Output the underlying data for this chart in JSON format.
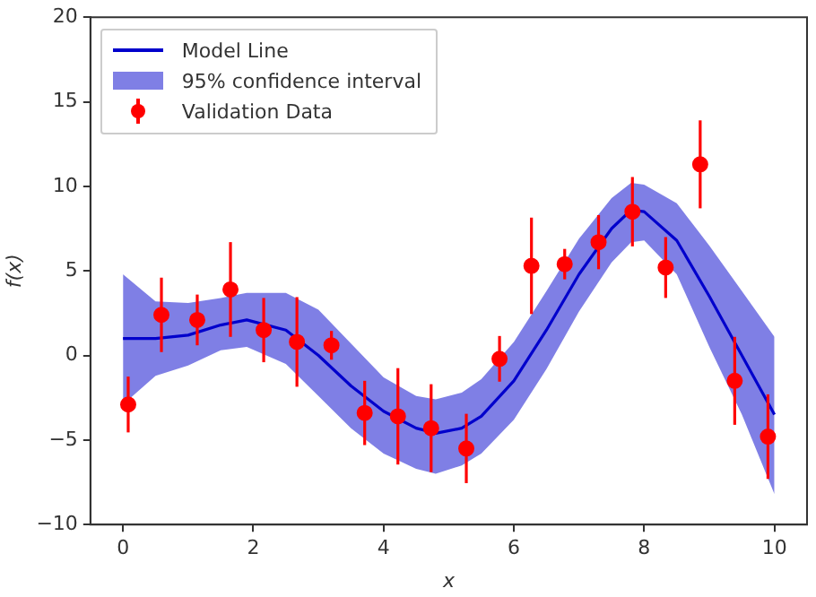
{
  "chart_data": {
    "type": "line",
    "xlabel": "x",
    "ylabel": "f(x)",
    "legend": "top left",
    "grid": false,
    "annotations": [
      "95% confidence interval"
    ],
    "xlim": [
      -0.5,
      10.5
    ],
    "xticks": [
      0,
      2,
      4,
      6,
      8,
      10
    ],
    "ylim": [
      -10,
      20
    ],
    "yticks": [
      {
        "value": -10,
        "label": "−10"
      },
      {
        "value": -5,
        "label": "−5"
      },
      0,
      5,
      10,
      15,
      20
    ],
    "series": [
      {
        "name": "Model Line",
        "color": "#0000cc",
        "x": [
          0,
          0.5,
          1,
          1.5,
          1.9,
          2.5,
          3,
          3.5,
          4,
          4.5,
          4.8,
          5.2,
          5.5,
          6,
          6.5,
          7,
          7.5,
          7.8,
          8,
          8.5,
          9,
          9.5,
          10
        ],
        "values": [
          1,
          1,
          1.2,
          1.8,
          2.1,
          1.5,
          0,
          -1.8,
          -3.3,
          -4.3,
          -4.6,
          -4.3,
          -3.6,
          -1.5,
          1.5,
          4.8,
          7.5,
          8.6,
          8.5,
          6.8,
          3.5,
          0,
          -3.5
        ],
        "lower": [
          -2.9,
          -1.2,
          -0.6,
          0.3,
          0.5,
          -0.5,
          -2.4,
          -4.3,
          -5.8,
          -6.7,
          -7,
          -6.5,
          -5.8,
          -3.8,
          -0.8,
          2.6,
          5.5,
          6.7,
          6.8,
          4.8,
          0.5,
          -3.5,
          -8.2
        ],
        "upper": [
          4.8,
          3.2,
          3.1,
          3.4,
          3.7,
          3.7,
          2.7,
          0.7,
          -1.3,
          -2.4,
          -2.6,
          -2.2,
          -1.4,
          0.8,
          3.8,
          6.9,
          9.3,
          10.2,
          10.1,
          9,
          6.5,
          3.8,
          1.1
        ]
      },
      {
        "type": "scatter",
        "name": "Validation Data",
        "color": "#ff0000",
        "marker": "circle",
        "x": [
          0.08,
          0.59,
          1.14,
          1.65,
          2.16,
          2.67,
          3.2,
          3.71,
          4.22,
          4.73,
          5.27,
          5.78,
          6.27,
          6.78,
          7.3,
          7.82,
          8.33,
          8.86,
          9.39,
          9.9
        ],
        "values": [
          -2.9,
          2.4,
          2.1,
          3.9,
          1.5,
          0.8,
          0.6,
          -3.4,
          -3.6,
          -4.3,
          -5.5,
          -0.2,
          5.3,
          5.4,
          6.7,
          8.5,
          5.2,
          11.3,
          -1.5,
          -4.8
        ],
        "errors": [
          1.65,
          2.2,
          1.5,
          2.8,
          1.9,
          2.65,
          0.85,
          1.9,
          2.85,
          2.6,
          2.05,
          1.35,
          2.85,
          0.9,
          1.6,
          2.05,
          1.8,
          2.6,
          2.6,
          2.5
        ]
      }
    ]
  }
}
